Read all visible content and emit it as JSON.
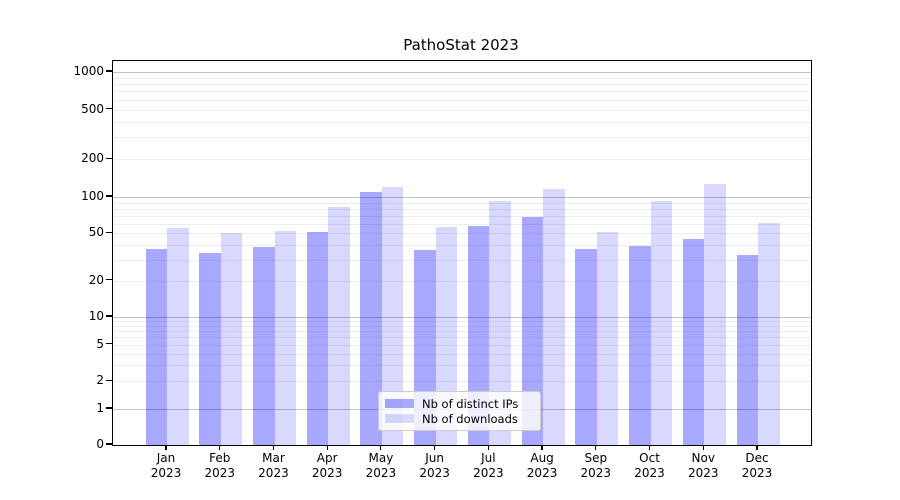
{
  "chart_data": {
    "type": "bar",
    "title": "PathoStat 2023",
    "x": {
      "months": [
        "Jan",
        "Feb",
        "Mar",
        "Apr",
        "May",
        "Jun",
        "Jul",
        "Aug",
        "Sep",
        "Oct",
        "Nov",
        "Dec"
      ],
      "year": "2023"
    },
    "series": [
      {
        "name": "Nb of distinct IPs",
        "color_hex": "#a8a8ff",
        "css_color": "rgba(0,0,255,0.34)",
        "values": [
          37,
          34,
          38,
          51,
          110,
          36,
          57,
          68,
          37,
          39,
          45,
          33
        ]
      },
      {
        "name": "Nb of downloads",
        "color_hex": "#d8d8ff",
        "css_color": "rgba(0,0,255,0.15)",
        "values": [
          55,
          50,
          52,
          83,
          120,
          56,
          92,
          115,
          51,
          92,
          127,
          61
        ]
      }
    ],
    "y_axis": {
      "scale": "symlog",
      "ticks": [
        0,
        1,
        2,
        5,
        10,
        20,
        50,
        100,
        200,
        500,
        1000
      ],
      "range": [
        0,
        1000
      ],
      "major_gridlines": [
        1,
        10,
        100,
        1000
      ]
    },
    "grid": "on",
    "legend": {
      "position": "lower center"
    }
  }
}
